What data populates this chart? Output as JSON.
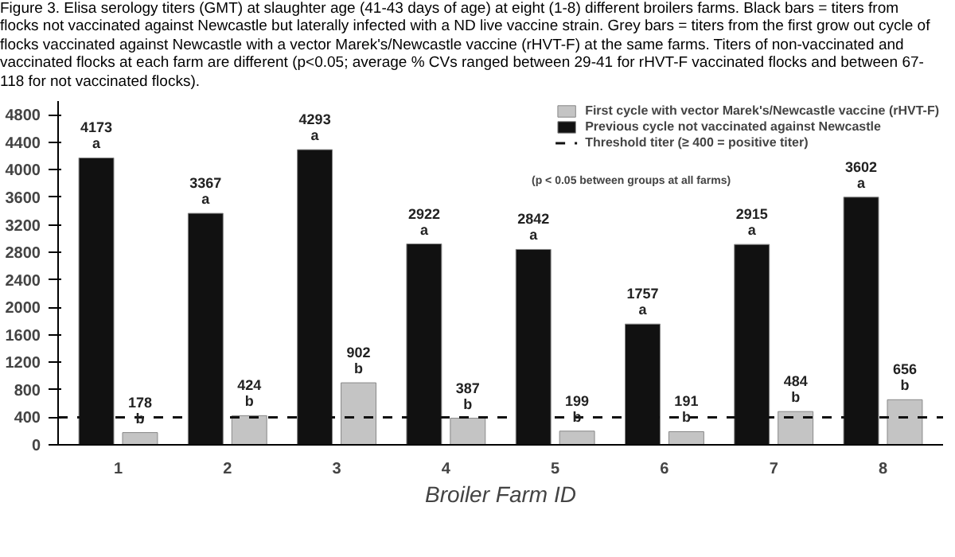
{
  "chart_data": {
    "type": "bar",
    "title": "Figure 3. Elisa serology titers (GMT) at slaughter age (41-43 days of age) at eight (1-8) different broilers farms. Black bars = titers from flocks not vaccinated against Newcastle but laterally infected with a ND live vaccine strain. Grey bars = titers from the first grow out cycle of flocks vaccinated against Newcastle with a vector Marek's/Newcastle vaccine (rHVT-F) at the same farms. Titers of non-vaccinated and vaccinated flocks at each farm are different (p<0.05; average % CVs ranged between 29-41 for rHVT-F vaccinated flocks and between 67-118 for not vaccinated flocks).",
    "xlabel": "Broiler Farm ID",
    "categories": [
      "1",
      "2",
      "3",
      "4",
      "5",
      "6",
      "7",
      "8"
    ],
    "series": [
      {
        "name": "Previous cycle not vaccinated against Newcastle",
        "color": "#111111",
        "values": [
          4173,
          3367,
          4293,
          2922,
          2842,
          1757,
          2915,
          3602
        ],
        "value_labels": [
          "4173\na",
          "3367\na",
          "4293\na",
          "2922\na",
          "2842\na",
          "1757\na",
          "2915\na",
          "3602\na"
        ]
      },
      {
        "name": "First cycle with vector Marek's/Newcastle vaccine (rHVT-F)",
        "color": "#c4c4c4",
        "values": [
          178,
          424,
          902,
          387,
          199,
          191,
          484,
          656
        ],
        "value_labels": [
          "178\nb",
          "424\nb",
          "902\nb",
          "387\nb",
          "199\nb",
          "191\nb",
          "484\nb",
          "656\nb"
        ]
      }
    ],
    "ylim": [
      0,
      5000
    ],
    "yticks": [
      0,
      400,
      800,
      1200,
      1600,
      2000,
      2400,
      2800,
      3200,
      3600,
      4000,
      4400,
      4800
    ],
    "ref_lines": [
      {
        "axis": "y",
        "value": 400,
        "label": "Threshold titer (≥ 400 = positive titer)",
        "color": "#111111",
        "line_style": "dashed"
      }
    ],
    "annotations": [
      "(p < 0.05 between groups at all farms)"
    ],
    "legend": "top right",
    "grid": false
  }
}
